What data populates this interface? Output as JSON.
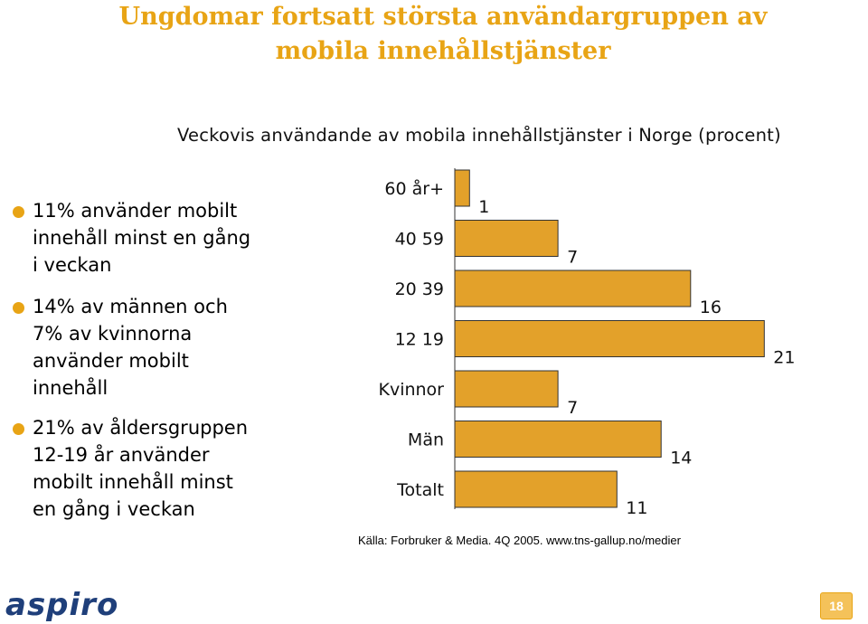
{
  "title_lines": [
    "Ungdomar fortsatt största användargruppen av",
    "mobila innehållstjänster"
  ],
  "bullets": [
    {
      "lines": [
        "11% använder mobilt",
        "innehåll minst en gång",
        "i veckan"
      ]
    },
    {
      "lines": [
        "14% av männen och",
        "7% av kvinnorna",
        "använder mobilt",
        "innehåll"
      ]
    },
    {
      "lines": [
        "21% av åldersgruppen",
        "12-19 år använder",
        "mobilt innehåll minst",
        "en gång i veckan"
      ]
    }
  ],
  "source": "Källa: Forbruker & Media. 4Q 2005.   www.tns-gallup.no/medier",
  "logo_text": "aspiro",
  "page_number": "18",
  "colors": {
    "accent": "#e8a415",
    "bar": "#e3a12a",
    "bar_edge": "#333333"
  },
  "chart_data": {
    "type": "bar",
    "orientation": "horizontal",
    "title": "Veckovis användande av mobila innehållstjänster i Norge (procent)",
    "categories": [
      "60 år+",
      "40 59",
      "20 39",
      "12 19",
      "Kvinnor",
      "Män",
      "Totalt"
    ],
    "values": [
      1,
      7,
      16,
      21,
      7,
      14,
      11
    ],
    "xlim": [
      0,
      21
    ],
    "grid": false,
    "legend": "none"
  }
}
